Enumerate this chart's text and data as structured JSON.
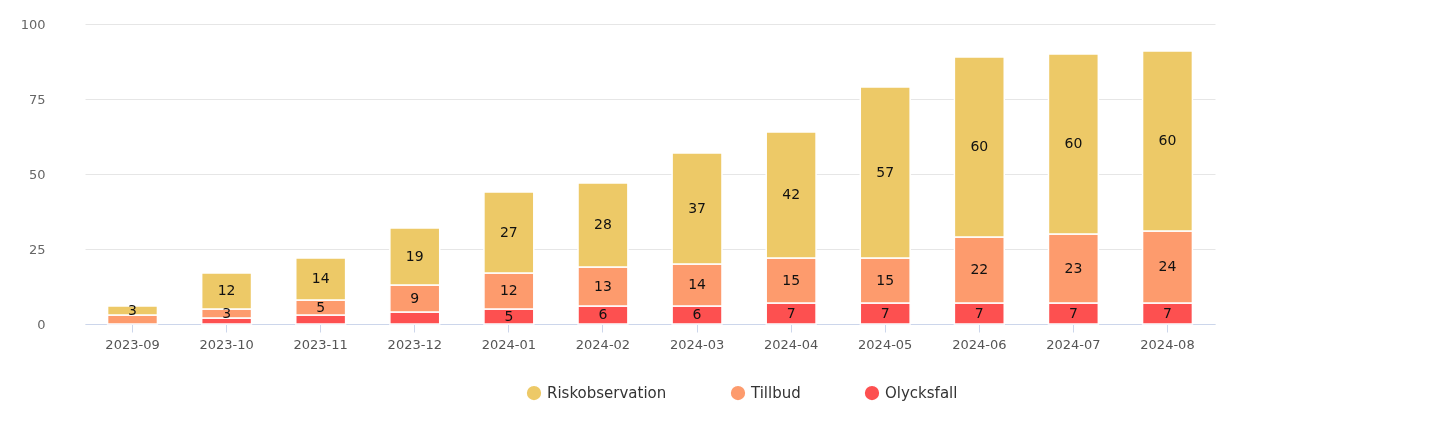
{
  "chart_data": {
    "type": "bar",
    "stacked": true,
    "categories": [
      "2023-09",
      "2023-10",
      "2023-11",
      "2023-12",
      "2024-01",
      "2024-02",
      "2024-03",
      "2024-04",
      "2024-05",
      "2024-06",
      "2024-07",
      "2024-08"
    ],
    "series": [
      {
        "name": "Olycksfall",
        "color": "#fd5050",
        "values": [
          null,
          2,
          3,
          4,
          5,
          6,
          6,
          7,
          7,
          7,
          7,
          7
        ],
        "value_labels": [
          null,
          null,
          null,
          null,
          "5",
          "6",
          "6",
          "7",
          "7",
          "7",
          "7",
          "7"
        ]
      },
      {
        "name": "Tillbud",
        "color": "#fd9b6d",
        "values": [
          3,
          3,
          5,
          9,
          12,
          13,
          14,
          15,
          15,
          22,
          23,
          24
        ],
        "value_labels": [
          null,
          "3",
          "5",
          "9",
          "12",
          "13",
          "14",
          "15",
          "15",
          "22",
          "23",
          "24"
        ]
      },
      {
        "name": "Riskobservation",
        "color": "#edc967",
        "values": [
          3,
          12,
          14,
          19,
          27,
          28,
          37,
          42,
          57,
          60,
          60,
          60
        ],
        "value_labels": [
          "3",
          "12",
          "14",
          "19",
          "27",
          "28",
          "37",
          "42",
          "57",
          "60",
          "60",
          "60"
        ]
      }
    ],
    "ylim": [
      0,
      100
    ],
    "yticks": [
      0,
      25,
      50,
      75,
      100
    ],
    "grid": "y",
    "legend": "bottom"
  }
}
